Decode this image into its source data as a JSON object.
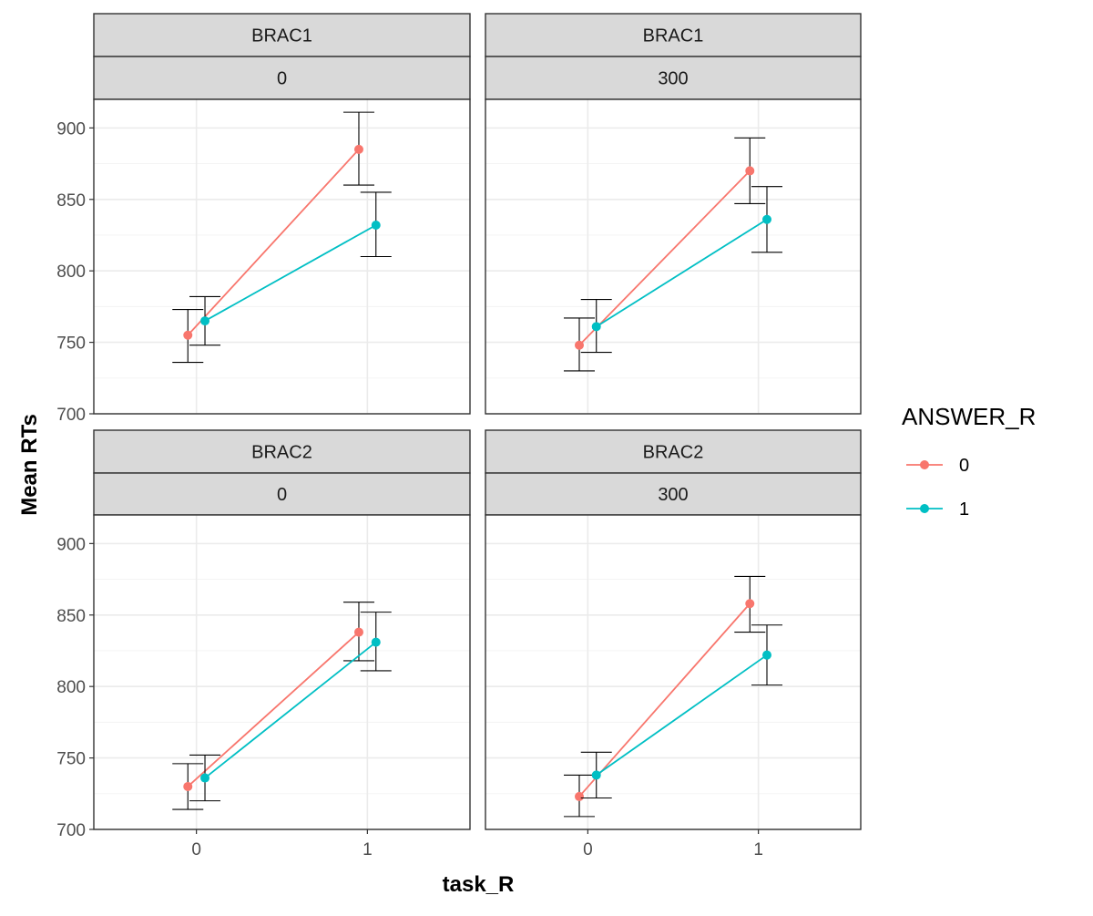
{
  "chart_data": {
    "type": "line",
    "xlabel": "task_R",
    "ylabel": "Mean RTs",
    "x_categories": [
      "0",
      "1"
    ],
    "ylim": [
      700,
      920
    ],
    "y_ticks": [
      700,
      750,
      800,
      850,
      900
    ],
    "grid": true,
    "legend": {
      "title": "ANSWER_R",
      "placement": "right",
      "entries": [
        {
          "label": "0",
          "color": "#F8766D"
        },
        {
          "label": "1",
          "color": "#00BFC4"
        }
      ]
    },
    "panels": [
      {
        "strip_top": "BRAC1",
        "strip_bottom": "0",
        "series": [
          {
            "name": "0",
            "color": "#F8766D",
            "points": [
              {
                "x": "0",
                "y": 755,
                "ymin": 736,
                "ymax": 773
              },
              {
                "x": "1",
                "y": 885,
                "ymin": 860,
                "ymax": 911
              }
            ]
          },
          {
            "name": "1",
            "color": "#00BFC4",
            "points": [
              {
                "x": "0",
                "y": 765,
                "ymin": 748,
                "ymax": 782
              },
              {
                "x": "1",
                "y": 832,
                "ymin": 810,
                "ymax": 855
              }
            ]
          }
        ]
      },
      {
        "strip_top": "BRAC1",
        "strip_bottom": "300",
        "series": [
          {
            "name": "0",
            "color": "#F8766D",
            "points": [
              {
                "x": "0",
                "y": 748,
                "ymin": 730,
                "ymax": 767
              },
              {
                "x": "1",
                "y": 870,
                "ymin": 847,
                "ymax": 893
              }
            ]
          },
          {
            "name": "1",
            "color": "#00BFC4",
            "points": [
              {
                "x": "0",
                "y": 761,
                "ymin": 743,
                "ymax": 780
              },
              {
                "x": "1",
                "y": 836,
                "ymin": 813,
                "ymax": 859
              }
            ]
          }
        ]
      },
      {
        "strip_top": "BRAC2",
        "strip_bottom": "0",
        "series": [
          {
            "name": "0",
            "color": "#F8766D",
            "points": [
              {
                "x": "0",
                "y": 730,
                "ymin": 714,
                "ymax": 746
              },
              {
                "x": "1",
                "y": 838,
                "ymin": 818,
                "ymax": 859
              }
            ]
          },
          {
            "name": "1",
            "color": "#00BFC4",
            "points": [
              {
                "x": "0",
                "y": 736,
                "ymin": 720,
                "ymax": 752
              },
              {
                "x": "1",
                "y": 831,
                "ymin": 811,
                "ymax": 852
              }
            ]
          }
        ]
      },
      {
        "strip_top": "BRAC2",
        "strip_bottom": "300",
        "series": [
          {
            "name": "0",
            "color": "#F8766D",
            "points": [
              {
                "x": "0",
                "y": 723,
                "ymin": 709,
                "ymax": 738
              },
              {
                "x": "1",
                "y": 858,
                "ymin": 838,
                "ymax": 877
              }
            ]
          },
          {
            "name": "1",
            "color": "#00BFC4",
            "points": [
              {
                "x": "0",
                "y": 738,
                "ymin": 722,
                "ymax": 754
              },
              {
                "x": "1",
                "y": 822,
                "ymin": 801,
                "ymax": 843
              }
            ]
          }
        ]
      }
    ]
  }
}
